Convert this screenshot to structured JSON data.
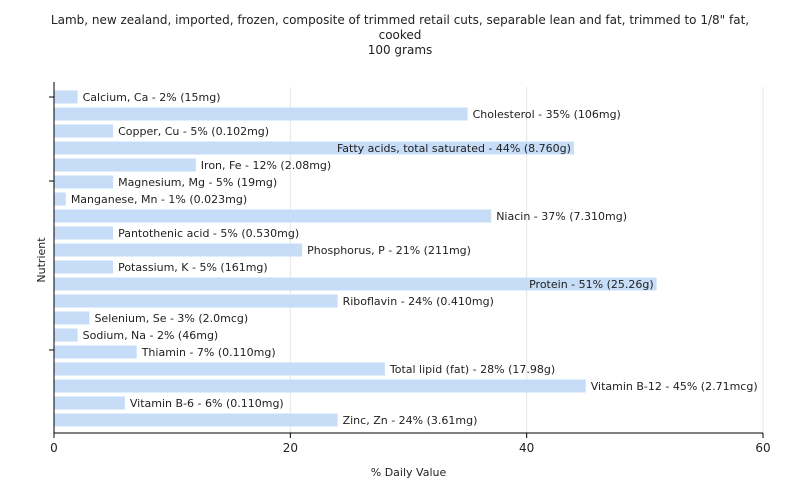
{
  "chart_data": {
    "type": "bar",
    "orientation": "horizontal",
    "title_lines": [
      "Lamb, new zealand, imported, frozen, composite of trimmed retail cuts, separable lean and fat, trimmed to 1/8\" fat,",
      "cooked",
      "100 grams"
    ],
    "xlabel": "% Daily Value",
    "ylabel": "Nutrient",
    "xlim": [
      0,
      60
    ],
    "xticks": [
      0,
      20,
      40,
      60
    ],
    "grid": true,
    "colors": {
      "bar": "#c6dcf7",
      "grid": "#e6e6e6",
      "axis": "#000000"
    },
    "categories": [
      "Calcium, Ca",
      "Cholesterol",
      "Copper, Cu",
      "Fatty acids, total saturated",
      "Iron, Fe",
      "Magnesium, Mg",
      "Manganese, Mn",
      "Niacin",
      "Pantothenic acid",
      "Phosphorus, P",
      "Potassium, K",
      "Protein",
      "Riboflavin",
      "Selenium, Se",
      "Sodium, Na",
      "Thiamin",
      "Total lipid (fat)",
      "Vitamin B-12",
      "Vitamin B-6",
      "Zinc, Zn"
    ],
    "values": [
      2,
      35,
      5,
      44,
      12,
      5,
      1,
      37,
      5,
      21,
      5,
      51,
      24,
      3,
      2,
      7,
      28,
      45,
      6,
      24
    ],
    "labels": [
      "Calcium, Ca - 2% (15mg)",
      "Cholesterol - 35% (106mg)",
      "Copper, Cu - 5% (0.102mg)",
      "Fatty acids, total saturated - 44% (8.760g)",
      "Iron, Fe - 12% (2.08mg)",
      "Magnesium, Mg - 5% (19mg)",
      "Manganese, Mn - 1% (0.023mg)",
      "Niacin - 37% (7.310mg)",
      "Pantothenic acid - 5% (0.530mg)",
      "Phosphorus, P - 21% (211mg)",
      "Potassium, K - 5% (161mg)",
      "Protein - 51% (25.26g)",
      "Riboflavin - 24% (0.410mg)",
      "Selenium, Se - 3% (2.0mcg)",
      "Sodium, Na - 2% (46mg)",
      "Thiamin - 7% (0.110mg)",
      "Total lipid (fat) - 28% (17.98g)",
      "Vitamin B-12 - 45% (2.71mcg)",
      "Vitamin B-6 - 6% (0.110mg)",
      "Zinc, Zn - 24% (3.61mg)"
    ]
  }
}
